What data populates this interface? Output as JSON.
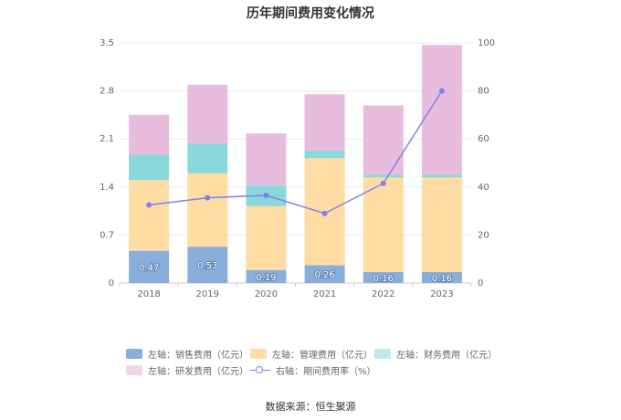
{
  "chart_data": {
    "type": "bar",
    "title": "历年期间费用变化情况",
    "categories": [
      "2018",
      "2019",
      "2020",
      "2021",
      "2022",
      "2023"
    ],
    "left_axis": {
      "ylim": [
        0,
        3.5
      ],
      "ticks": [
        "0",
        "0.7",
        "1.4",
        "2.1",
        "2.8",
        "3.5"
      ]
    },
    "right_axis": {
      "ylim": [
        0,
        100
      ],
      "ticks": [
        "0",
        "20",
        "40",
        "60",
        "80",
        "100"
      ]
    },
    "series": [
      {
        "name": "左轴：销售费用（亿元）",
        "type": "bar",
        "color": "#8aaedc",
        "values": [
          0.47,
          0.53,
          0.19,
          0.26,
          0.16,
          0.16
        ],
        "labels": [
          "0.47",
          "0.53",
          "0.19",
          "0.26",
          "0.16",
          "0.16"
        ]
      },
      {
        "name": "左轴：管理费用（亿元）",
        "type": "bar",
        "color": "#fedca4",
        "values": [
          1.03,
          1.07,
          0.93,
          1.56,
          1.38,
          1.38
        ]
      },
      {
        "name": "左轴：财务费用（亿元）",
        "type": "bar",
        "color": "#88d8dc",
        "values": [
          0.37,
          0.43,
          0.3,
          0.11,
          0.04,
          0.04
        ]
      },
      {
        "name": "左轴：研发费用（亿元）",
        "type": "bar",
        "color": "#e8bcdd",
        "values": [
          0.58,
          0.86,
          0.76,
          0.82,
          1.01,
          1.89
        ]
      },
      {
        "name": "右轴：期间费用率（%）",
        "type": "line",
        "color": "#8080ee",
        "values": [
          32.5,
          35.5,
          36.5,
          29.0,
          41.5,
          80.0
        ]
      }
    ],
    "legend_position": "bottom",
    "grid": true
  },
  "source": "数据来源：恒生聚源"
}
